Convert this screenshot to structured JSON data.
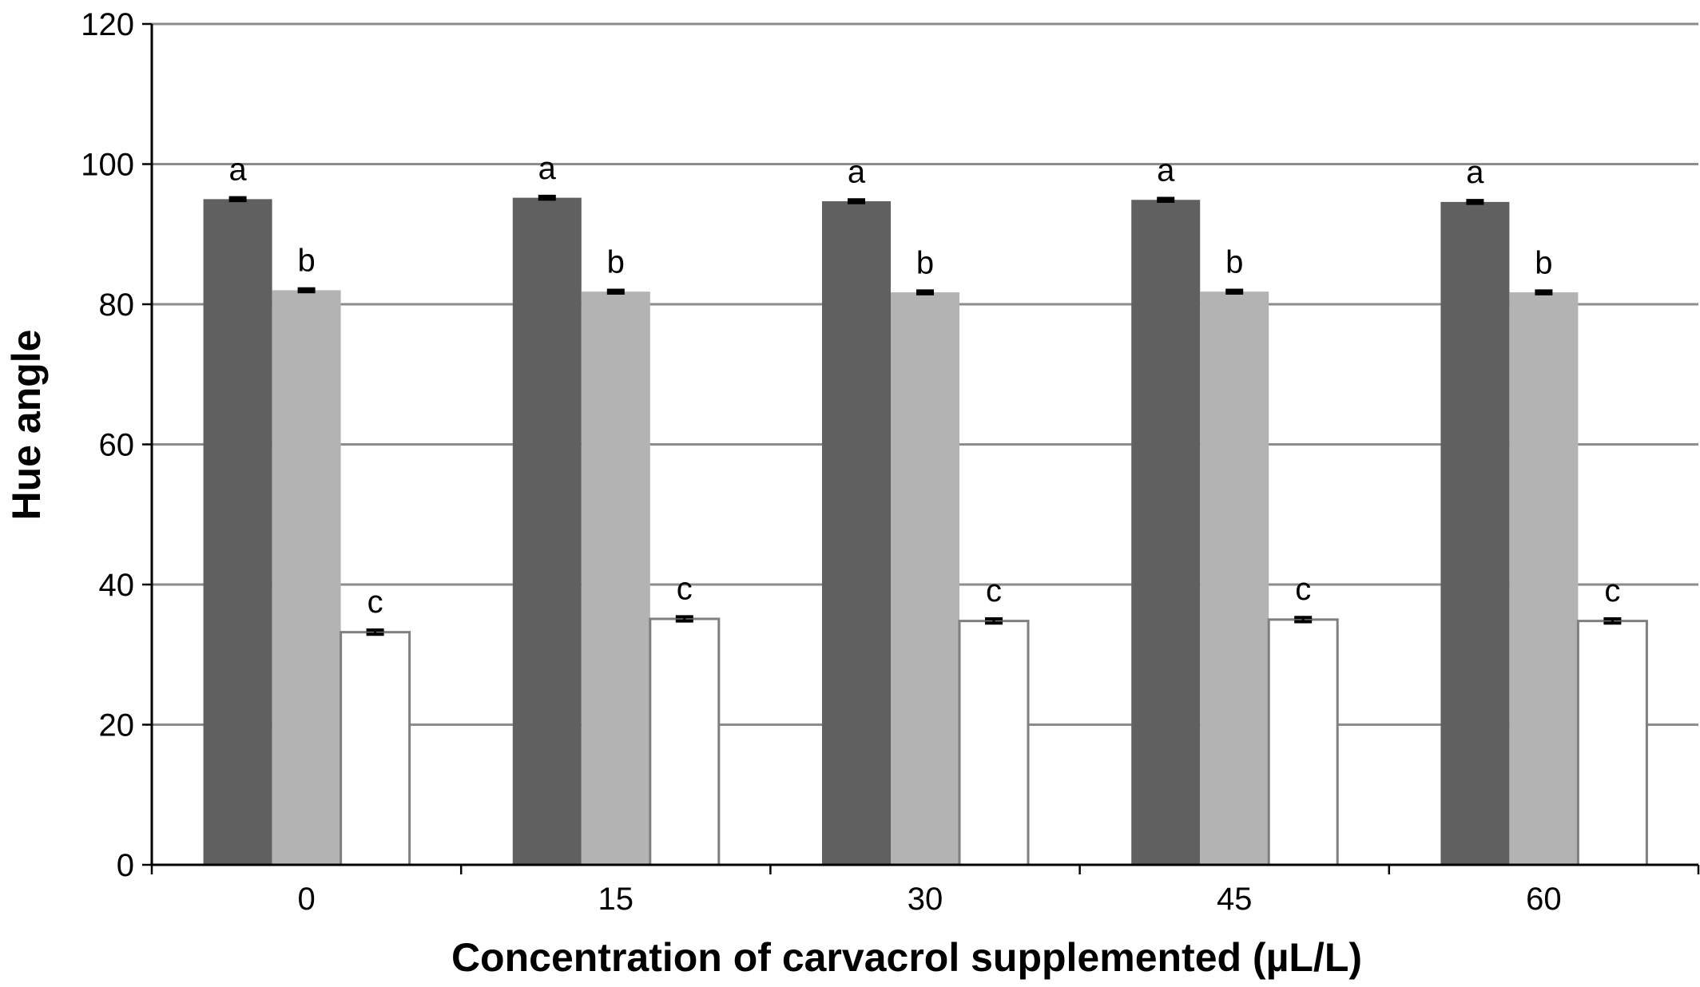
{
  "chart_data": {
    "type": "bar",
    "title": "",
    "xlabel": "Concentration of carvacrol supplemented (µL/L)",
    "ylabel": "Hue angle",
    "categories": [
      "0",
      "15",
      "30",
      "45",
      "60"
    ],
    "ylim": [
      0,
      120
    ],
    "yticks": [
      0,
      20,
      40,
      60,
      80,
      100,
      120
    ],
    "grid": true,
    "legend": "none",
    "series": [
      {
        "color": "#606060",
        "values": [
          95.0,
          95.2,
          94.7,
          94.9,
          94.6
        ],
        "errors": [
          0.2,
          0.2,
          0.2,
          0.2,
          0.2
        ],
        "letters": [
          "a",
          "a",
          "a",
          "a",
          "a"
        ]
      },
      {
        "color": "#b3b3b3",
        "values": [
          82.0,
          81.8,
          81.7,
          81.8,
          81.7
        ],
        "errors": [
          0.2,
          0.2,
          0.2,
          0.2,
          0.2
        ],
        "letters": [
          "b",
          "b",
          "b",
          "b",
          "b"
        ]
      },
      {
        "color": "#ffffff",
        "values": [
          33.2,
          35.1,
          34.8,
          35.0,
          34.8
        ],
        "errors": [
          0.3,
          0.3,
          0.3,
          0.3,
          0.3
        ],
        "letters": [
          "c",
          "c",
          "c",
          "c",
          "c"
        ]
      }
    ]
  }
}
